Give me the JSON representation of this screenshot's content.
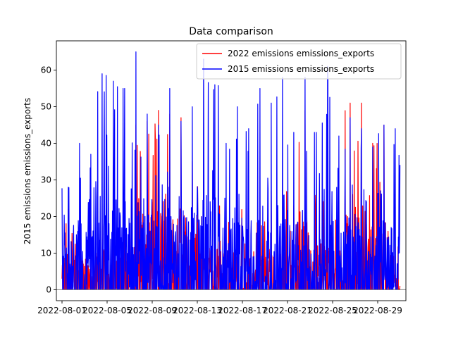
{
  "chart_data": {
    "type": "line",
    "title": "Data comparison",
    "xlabel": "",
    "ylabel": "2015 emissions emissions_exports",
    "x_range": [
      "2022-08-01",
      "2022-08-30"
    ],
    "xlim": [
      "2022-07-31T12:00",
      "2022-08-31T12:00"
    ],
    "ylim": [
      -3,
      68
    ],
    "x_ticks": [
      "2022-08-01",
      "2022-08-05",
      "2022-08-09",
      "2022-08-13",
      "2022-08-17",
      "2022-08-21",
      "2022-08-25",
      "2022-08-29"
    ],
    "y_ticks": [
      0,
      10,
      20,
      30,
      40,
      50,
      60
    ],
    "legend_position": "top-right",
    "baseline": 0,
    "baseline_color": "#808080",
    "series": [
      {
        "name": "2022 emissions emissions_exports",
        "color": "#ff0000",
        "dates": [
          "2022-08-01",
          "2022-08-02",
          "2022-08-03",
          "2022-08-04",
          "2022-08-05",
          "2022-08-06",
          "2022-08-07",
          "2022-08-08",
          "2022-08-09",
          "2022-08-10",
          "2022-08-11",
          "2022-08-12",
          "2022-08-13",
          "2022-08-14",
          "2022-08-15",
          "2022-08-16",
          "2022-08-17",
          "2022-08-18",
          "2022-08-19",
          "2022-08-20",
          "2022-08-21",
          "2022-08-22",
          "2022-08-23",
          "2022-08-24",
          "2022-08-25",
          "2022-08-26",
          "2022-08-27",
          "2022-08-28",
          "2022-08-29",
          "2022-08-30"
        ],
        "values": [
          22,
          18,
          20,
          25,
          19,
          24,
          45,
          46,
          49,
          48,
          47,
          35,
          30,
          26,
          24,
          28,
          22,
          25,
          27,
          30,
          23,
          49,
          30,
          28,
          26,
          51,
          51,
          40,
          45,
          12
        ]
      },
      {
        "name": "2015 emissions emissions_exports",
        "color": "#0000ff",
        "dates": [
          "2022-08-01",
          "2022-08-02",
          "2022-08-03",
          "2022-08-04",
          "2022-08-05",
          "2022-08-06",
          "2022-08-07",
          "2022-08-08",
          "2022-08-09",
          "2022-08-10",
          "2022-08-11",
          "2022-08-12",
          "2022-08-13",
          "2022-08-14",
          "2022-08-15",
          "2022-08-16",
          "2022-08-17",
          "2022-08-18",
          "2022-08-19",
          "2022-08-20",
          "2022-08-21",
          "2022-08-22",
          "2022-08-23",
          "2022-08-24",
          "2022-08-25",
          "2022-08-26",
          "2022-08-27",
          "2022-08-28",
          "2022-08-29",
          "2022-08-30"
        ],
        "values": [
          28,
          40,
          37,
          59,
          57,
          55,
          65,
          48,
          45,
          55,
          46,
          50,
          63,
          56,
          40,
          50,
          44,
          55,
          51,
          58,
          43,
          58,
          43,
          61,
          42,
          47,
          44,
          39,
          45,
          44
        ]
      }
    ]
  }
}
